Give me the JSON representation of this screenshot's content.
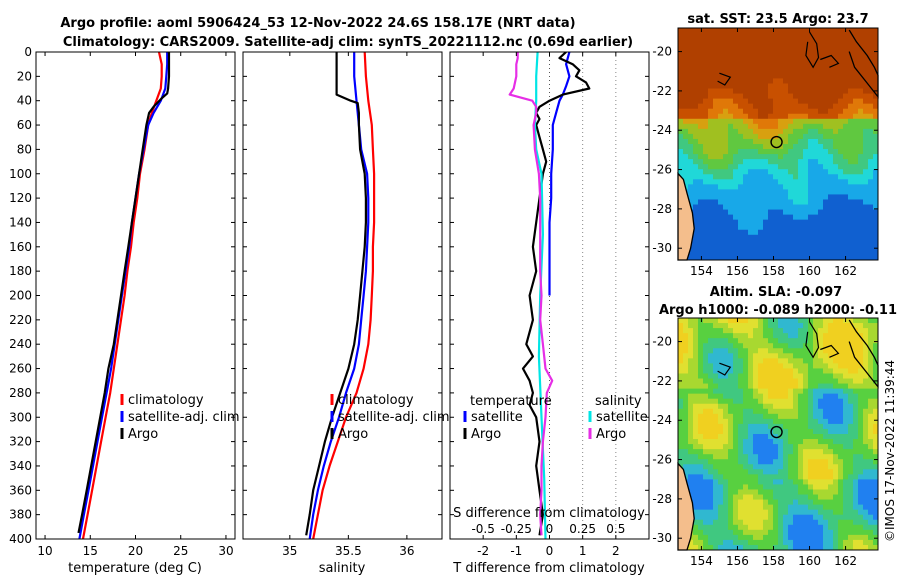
{
  "header": {
    "line1": "Argo profile: aoml 5906424_53 12-Nov-2022 24.6S 158.17E (NRT data)",
    "line2": "Climatology: CARS2009. Satellite-adj clim: synTS_20221112.nc (0.69d earlier)"
  },
  "colors": {
    "climatology": "#ff0000",
    "satellite": "#0000ff",
    "argo": "#000000",
    "sal_sat": "#00e5e5",
    "sal_argo": "#e62ee6"
  },
  "depth_ticks": [
    "0",
    "20",
    "40",
    "60",
    "80",
    "100",
    "120",
    "140",
    "160",
    "180",
    "200",
    "220",
    "240",
    "260",
    "280",
    "300",
    "320",
    "340",
    "360",
    "380",
    "400"
  ],
  "chart_data": [
    {
      "type": "line",
      "name": "temperature",
      "xlabel": "temperature (deg C)",
      "xlim": [
        9,
        31
      ],
      "ylim": [
        0,
        400
      ],
      "x_ticks": [
        "10",
        "15",
        "20",
        "25",
        "30"
      ],
      "legend": [
        "climatology",
        "satellite-adj. clim",
        "Argo"
      ],
      "series": [
        {
          "name": "climatology",
          "depth": [
            0,
            10,
            20,
            30,
            40,
            50,
            60,
            80,
            100,
            120,
            140,
            160,
            180,
            200,
            220,
            240,
            260,
            280,
            300,
            320,
            340,
            360,
            380,
            400
          ],
          "values": [
            22.6,
            22.9,
            22.9,
            22.8,
            22.3,
            21.8,
            21.4,
            21.0,
            20.5,
            20.2,
            19.8,
            19.5,
            19.1,
            18.8,
            18.4,
            18.0,
            17.6,
            17.2,
            16.7,
            16.2,
            15.7,
            15.2,
            14.7,
            14.2
          ]
        },
        {
          "name": "satellite-adj. clim",
          "depth": [
            0,
            10,
            20,
            30,
            40,
            50,
            60,
            80,
            100,
            120,
            140,
            160,
            180,
            200,
            220,
            240,
            260,
            280,
            300,
            320,
            340,
            360,
            380,
            400
          ],
          "values": [
            23.5,
            23.5,
            23.4,
            23.3,
            22.8,
            22.0,
            21.4,
            20.9,
            20.4,
            20.0,
            19.6,
            19.3,
            18.9,
            18.5,
            18.1,
            17.7,
            17.3,
            16.8,
            16.3,
            15.8,
            15.3,
            14.8,
            14.3,
            13.8
          ]
        },
        {
          "name": "Argo",
          "depth": [
            0,
            10,
            20,
            30,
            34,
            38,
            45,
            50,
            60,
            80,
            100,
            120,
            140,
            160,
            180,
            200,
            220,
            240,
            260,
            280,
            300,
            320,
            340,
            360,
            380,
            395
          ],
          "values": [
            23.7,
            23.7,
            23.7,
            23.6,
            23.5,
            22.9,
            22.0,
            21.5,
            21.2,
            20.8,
            20.4,
            20.0,
            19.6,
            19.2,
            18.8,
            18.4,
            18.0,
            17.6,
            17.0,
            16.6,
            16.1,
            15.6,
            15.1,
            14.6,
            14.1,
            13.7
          ]
        }
      ]
    },
    {
      "type": "line",
      "name": "salinity",
      "xlabel": "salinity",
      "xlim": [
        34.6,
        36.3
      ],
      "ylim": [
        0,
        400
      ],
      "x_ticks": [
        "35",
        "35.5",
        "36"
      ],
      "legend": [
        "climatology",
        "satellite-adj. clim",
        "Argo"
      ],
      "series": [
        {
          "name": "climatology",
          "depth": [
            0,
            20,
            40,
            60,
            80,
            100,
            120,
            140,
            160,
            180,
            200,
            220,
            240,
            260,
            280,
            300,
            320,
            340,
            360,
            380,
            400
          ],
          "values": [
            35.64,
            35.65,
            35.67,
            35.7,
            35.71,
            35.72,
            35.72,
            35.72,
            35.71,
            35.71,
            35.7,
            35.69,
            35.67,
            35.63,
            35.57,
            35.48,
            35.41,
            35.34,
            35.28,
            35.24,
            35.2
          ]
        },
        {
          "name": "satellite-adj. clim",
          "depth": [
            0,
            20,
            40,
            60,
            80,
            100,
            120,
            140,
            160,
            180,
            200,
            220,
            240,
            260,
            280,
            300,
            320,
            340,
            360,
            380,
            400
          ],
          "values": [
            35.55,
            35.55,
            35.57,
            35.59,
            35.61,
            35.66,
            35.67,
            35.67,
            35.66,
            35.65,
            35.63,
            35.61,
            35.59,
            35.55,
            35.48,
            35.42,
            35.35,
            35.29,
            35.24,
            35.2,
            35.17
          ]
        },
        {
          "name": "Argo",
          "depth": [
            0,
            10,
            20,
            30,
            35,
            40,
            42,
            50,
            60,
            80,
            100,
            120,
            140,
            160,
            180,
            200,
            220,
            240,
            260,
            280,
            300,
            320,
            340,
            360,
            380,
            397
          ],
          "values": [
            35.4,
            35.4,
            35.4,
            35.4,
            35.4,
            35.52,
            35.58,
            35.59,
            35.59,
            35.6,
            35.64,
            35.65,
            35.65,
            35.64,
            35.62,
            35.6,
            35.58,
            35.55,
            35.5,
            35.43,
            35.36,
            35.3,
            35.25,
            35.2,
            35.17,
            35.14
          ]
        }
      ]
    },
    {
      "type": "line",
      "name": "difference from climatology",
      "xlabel": "T difference from climatology",
      "xlim": [
        -3,
        3
      ],
      "ylim": [
        0,
        400
      ],
      "x_ticks": [
        "-2",
        "-1",
        "0",
        "1",
        "2"
      ],
      "top_axis_label": "S difference from climatology",
      "top_ticks": [
        "-0.5",
        "-0.25",
        "0",
        "0.25",
        "0.5"
      ],
      "legend_t_title": "temperature",
      "legend_s_title": "salinity",
      "legend_t": [
        "satellite",
        "Argo"
      ],
      "legend_s": [
        "satellite",
        "Argo"
      ],
      "series": [
        {
          "name": "temperature satellite",
          "depth": [
            0,
            10,
            20,
            28,
            35,
            40,
            50,
            60,
            80,
            100,
            120,
            140,
            160,
            180,
            200
          ],
          "values": [
            0.6,
            0.5,
            0.6,
            0.5,
            0.4,
            0.3,
            0.2,
            0.1,
            0.1,
            0.05,
            0.05,
            0.0,
            0.0,
            0.0,
            0.0
          ]
        },
        {
          "name": "temperature Argo",
          "depth": [
            0,
            5,
            10,
            15,
            20,
            25,
            30,
            35,
            40,
            45,
            50,
            55,
            60,
            70,
            80,
            90,
            100,
            120,
            140,
            160,
            180,
            200,
            220,
            240,
            250,
            260,
            270,
            280,
            290,
            300,
            320,
            340,
            360,
            380,
            397
          ],
          "values": [
            0.5,
            0.3,
            0.7,
            0.9,
            0.8,
            1.1,
            1.2,
            0.4,
            0.0,
            -0.3,
            -0.4,
            -0.3,
            -0.4,
            -0.3,
            -0.2,
            -0.1,
            -0.2,
            -0.3,
            -0.4,
            -0.5,
            -0.4,
            -0.6,
            -0.5,
            -0.7,
            -0.5,
            -0.8,
            -0.6,
            -0.5,
            -0.6,
            -0.4,
            -0.3,
            -0.4,
            -0.3,
            -0.2,
            -0.3
          ]
        },
        {
          "name": "salinity satellite",
          "depth": [
            0,
            20,
            40,
            60,
            80,
            100,
            150,
            200,
            250,
            300,
            350,
            400
          ],
          "values": [
            -0.09,
            -0.1,
            -0.1,
            -0.11,
            -0.1,
            -0.06,
            -0.05,
            -0.07,
            -0.08,
            -0.06,
            -0.04,
            -0.03
          ]
        },
        {
          "name": "salinity Argo",
          "depth": [
            0,
            5,
            10,
            20,
            30,
            35,
            40,
            45,
            50,
            60,
            80,
            100,
            120,
            140,
            160,
            180,
            200,
            220,
            240,
            260,
            270,
            280,
            300,
            320,
            340,
            360,
            380,
            397
          ],
          "values": [
            -0.24,
            -0.24,
            -0.25,
            -0.25,
            -0.27,
            -0.3,
            -0.13,
            -0.1,
            -0.1,
            -0.12,
            -0.11,
            -0.08,
            -0.07,
            -0.07,
            -0.07,
            -0.07,
            -0.06,
            -0.07,
            -0.05,
            -0.03,
            0.02,
            -0.02,
            -0.03,
            -0.05,
            -0.06,
            -0.06,
            -0.07,
            -0.06
          ]
        }
      ]
    },
    {
      "type": "heatmap",
      "name": "sat SST map",
      "title": "sat. SST: 23.5 Argo: 23.7",
      "x_ticks": [
        "154",
        "156",
        "158",
        "160",
        "162"
      ],
      "y_ticks": [
        "-20",
        "-22",
        "-24",
        "-26",
        "-28",
        "-30"
      ],
      "xlim": [
        152.7,
        163.8
      ],
      "ylim": [
        -30.6,
        -18.8
      ],
      "marker": {
        "lon": 158.17,
        "lat": -24.6
      }
    },
    {
      "type": "heatmap",
      "name": "altimetry SLA map",
      "title1": "Altim. SLA: -0.097",
      "title2": "Argo h1000: -0.089 h2000: -0.11",
      "x_ticks": [
        "154",
        "156",
        "158",
        "160",
        "162"
      ],
      "y_ticks": [
        "-20",
        "-22",
        "-24",
        "-26",
        "-28",
        "-30"
      ],
      "xlim": [
        152.7,
        163.8
      ],
      "ylim": [
        -30.6,
        -18.8
      ],
      "marker": {
        "lon": 158.17,
        "lat": -24.6
      }
    }
  ],
  "footer": {
    "credit": "©IMOS 17-Nov-2022 11:39:44"
  }
}
